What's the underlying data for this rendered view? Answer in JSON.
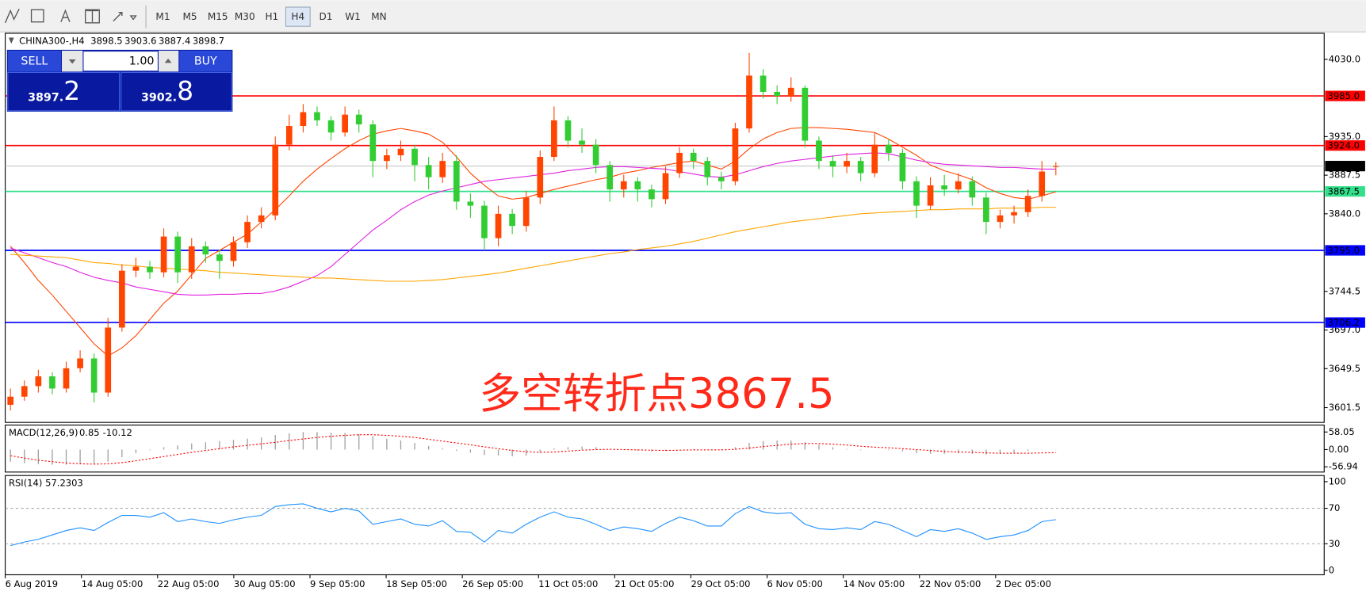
{
  "toolbar": {
    "timeframes": [
      "M1",
      "M5",
      "M15",
      "M30",
      "H1",
      "H4",
      "D1",
      "W1",
      "MN"
    ],
    "active": 5
  },
  "trade_panel": {
    "sell": "SELL",
    "buy": "BUY",
    "lot": "1.00",
    "sell_price_main": "3897.",
    "sell_price_digit": "2",
    "buy_price_main": "3902.",
    "buy_price_digit": "8"
  },
  "time_axis": [
    "6 Aug 2019",
    "14 Aug 05:00",
    "22 Aug 05:00",
    "30 Aug 05:00",
    "9 Sep 05:00",
    "18 Sep 05:00",
    "26 Sep 05:00",
    "11 Oct 05:00",
    "21 Oct 05:00",
    "29 Oct 05:00",
    "6 Nov 05:00",
    "14 Nov 05:00",
    "22 Nov 05:00",
    "2 Dec 05:00"
  ],
  "chart_data": [
    {
      "type": "candlestick",
      "title": "CHINA300-,H4",
      "ohlc_header": [
        3898.5,
        3903.6,
        3887.4,
        3898.7
      ],
      "up_color": "#ff4500",
      "down_color": "#32cd32",
      "ohlc": [
        [
          3605,
          3625,
          3598,
          3615
        ],
        [
          3615,
          3635,
          3610,
          3628
        ],
        [
          3628,
          3648,
          3620,
          3640
        ],
        [
          3640,
          3645,
          3618,
          3625
        ],
        [
          3625,
          3658,
          3620,
          3650
        ],
        [
          3650,
          3672,
          3645,
          3662
        ],
        [
          3662,
          3668,
          3608,
          3620
        ],
        [
          3620,
          3712,
          3615,
          3700
        ],
        [
          3700,
          3778,
          3695,
          3770
        ],
        [
          3770,
          3786,
          3762,
          3775
        ],
        [
          3775,
          3782,
          3760,
          3768
        ],
        [
          3768,
          3822,
          3762,
          3812
        ],
        [
          3812,
          3818,
          3755,
          3768
        ],
        [
          3768,
          3810,
          3760,
          3800
        ],
        [
          3800,
          3806,
          3780,
          3790
        ],
        [
          3790,
          3796,
          3760,
          3782
        ],
        [
          3782,
          3812,
          3775,
          3805
        ],
        [
          3805,
          3838,
          3798,
          3830
        ],
        [
          3830,
          3848,
          3822,
          3838
        ],
        [
          3838,
          3935,
          3832,
          3925
        ],
        [
          3925,
          3962,
          3918,
          3948
        ],
        [
          3948,
          3975,
          3940,
          3965
        ],
        [
          3965,
          3972,
          3948,
          3955
        ],
        [
          3955,
          3960,
          3930,
          3940
        ],
        [
          3940,
          3972,
          3935,
          3962
        ],
        [
          3962,
          3968,
          3940,
          3950
        ],
        [
          3950,
          3955,
          3885,
          3905
        ],
        [
          3905,
          3920,
          3895,
          3912
        ],
        [
          3912,
          3930,
          3905,
          3920
        ],
        [
          3920,
          3925,
          3880,
          3900
        ],
        [
          3900,
          3910,
          3870,
          3885
        ],
        [
          3885,
          3915,
          3878,
          3905
        ],
        [
          3905,
          3912,
          3845,
          3855
        ],
        [
          3855,
          3865,
          3835,
          3850
        ],
        [
          3850,
          3856,
          3795,
          3810
        ],
        [
          3810,
          3850,
          3800,
          3840
        ],
        [
          3840,
          3846,
          3815,
          3825
        ],
        [
          3825,
          3868,
          3818,
          3860
        ],
        [
          3860,
          3918,
          3852,
          3910
        ],
        [
          3910,
          3972,
          3905,
          3955
        ],
        [
          3955,
          3960,
          3922,
          3930
        ],
        [
          3930,
          3945,
          3915,
          3925
        ],
        [
          3925,
          3932,
          3890,
          3900
        ],
        [
          3900,
          3905,
          3855,
          3870
        ],
        [
          3870,
          3888,
          3860,
          3880
        ],
        [
          3880,
          3885,
          3855,
          3870
        ],
        [
          3870,
          3876,
          3848,
          3858
        ],
        [
          3858,
          3898,
          3852,
          3890
        ],
        [
          3890,
          3922,
          3884,
          3915
        ],
        [
          3915,
          3920,
          3895,
          3905
        ],
        [
          3905,
          3910,
          3875,
          3885
        ],
        [
          3885,
          3892,
          3870,
          3880
        ],
        [
          3880,
          3952,
          3875,
          3945
        ],
        [
          3945,
          4038,
          3940,
          4010
        ],
        [
          4010,
          4018,
          3982,
          3990
        ],
        [
          3990,
          3998,
          3975,
          3985
        ],
        [
          3985,
          4008,
          3978,
          3995
        ],
        [
          3995,
          3998,
          3922,
          3930
        ],
        [
          3930,
          3935,
          3895,
          3905
        ],
        [
          3905,
          3912,
          3885,
          3898
        ],
        [
          3898,
          3915,
          3890,
          3905
        ],
        [
          3905,
          3910,
          3880,
          3890
        ],
        [
          3890,
          3940,
          3885,
          3925
        ],
        [
          3925,
          3932,
          3905,
          3915
        ],
        [
          3915,
          3920,
          3870,
          3880
        ],
        [
          3880,
          3886,
          3835,
          3850
        ],
        [
          3850,
          3885,
          3845,
          3875
        ],
        [
          3875,
          3888,
          3862,
          3870
        ],
        [
          3870,
          3890,
          3865,
          3880
        ],
        [
          3880,
          3886,
          3850,
          3860
        ],
        [
          3860,
          3866,
          3815,
          3830
        ],
        [
          3830,
          3845,
          3822,
          3838
        ],
        [
          3838,
          3850,
          3828,
          3842
        ],
        [
          3842,
          3870,
          3836,
          3862
        ],
        [
          3862,
          3905,
          3855,
          3892
        ],
        [
          3898.5,
          3903.6,
          3887.4,
          3898.7
        ]
      ],
      "moving_averages": [
        {
          "color": "#ff4500",
          "values": [
            3800,
            3780,
            3758,
            3740,
            3720,
            3700,
            3680,
            3665,
            3675,
            3690,
            3710,
            3730,
            3745,
            3765,
            3785,
            3795,
            3805,
            3815,
            3830,
            3845,
            3862,
            3880,
            3895,
            3908,
            3920,
            3930,
            3938,
            3942,
            3945,
            3942,
            3938,
            3928,
            3910,
            3890,
            3875,
            3862,
            3858,
            3860,
            3865,
            3870,
            3874,
            3878,
            3882,
            3885,
            3890,
            3893,
            3897,
            3900,
            3903,
            3905,
            3900,
            3895,
            3905,
            3920,
            3932,
            3940,
            3945,
            3946,
            3946,
            3945,
            3944,
            3942,
            3940,
            3932,
            3922,
            3912,
            3900,
            3893,
            3888,
            3882,
            3872,
            3865,
            3860,
            3858,
            3862,
            3867
          ]
        },
        {
          "color": "#e020e0",
          "values": [
            3798,
            3792,
            3786,
            3780,
            3775,
            3768,
            3762,
            3758,
            3755,
            3750,
            3747,
            3744,
            3741,
            3740,
            3740,
            3741,
            3741,
            3742,
            3742,
            3745,
            3750,
            3757,
            3764,
            3775,
            3790,
            3805,
            3820,
            3832,
            3845,
            3855,
            3863,
            3868,
            3872,
            3876,
            3880,
            3882,
            3884,
            3886,
            3888,
            3890,
            3893,
            3895,
            3897,
            3898,
            3898,
            3897,
            3896,
            3895,
            3892,
            3889,
            3886,
            3885,
            3888,
            3893,
            3898,
            3902,
            3905,
            3907,
            3909,
            3911,
            3913,
            3914,
            3915,
            3914,
            3910,
            3906,
            3903,
            3901,
            3900,
            3899,
            3898,
            3897,
            3897,
            3896,
            3895,
            3895
          ]
        },
        {
          "color": "#ffa500",
          "values": [
            3790,
            3789,
            3788,
            3787,
            3786,
            3783,
            3780,
            3779,
            3777,
            3776,
            3774,
            3773,
            3772,
            3771,
            3770,
            3768,
            3767,
            3766,
            3765,
            3764,
            3763,
            3762,
            3761,
            3761,
            3760,
            3759,
            3758,
            3757,
            3757,
            3757,
            3758,
            3759,
            3761,
            3763,
            3765,
            3767,
            3770,
            3773,
            3776,
            3779,
            3782,
            3785,
            3788,
            3791,
            3793,
            3796,
            3798,
            3800,
            3803,
            3806,
            3810,
            3814,
            3818,
            3821,
            3824,
            3827,
            3830,
            3832,
            3834,
            3836,
            3838,
            3840,
            3841,
            3842,
            3843,
            3844,
            3845,
            3845,
            3846,
            3846,
            3846,
            3847,
            3847,
            3847,
            3848,
            3848
          ]
        }
      ],
      "levels": [
        {
          "value": 3985,
          "label": "3985.0",
          "color": "#ff0000"
        },
        {
          "value": 3924,
          "label": "3924.0",
          "color": "#ff0000"
        },
        {
          "value": 3867.5,
          "label": "3867.5",
          "color": "#32e08c"
        },
        {
          "value": 3795,
          "label": "3795.0",
          "color": "#0000ff"
        },
        {
          "value": 3706.2,
          "label": "3706.2",
          "color": "#0000ff"
        }
      ],
      "current_price": 3898.7,
      "annotation": "多空转折点3867.5",
      "ylim": [
        3583.3,
        4062.1
      ],
      "yticks": [
        {
          "value": 4030,
          "label": "4030.0"
        },
        {
          "value": 3935,
          "label": "3935.0"
        },
        3887.5,
        {
          "value": 3840,
          "label": "3840.0"
        },
        3744.5,
        {
          "value": 3697,
          "label": "3697.0"
        },
        3649.5,
        3601.5
      ]
    },
    {
      "type": "macd",
      "title": "MACD(12,26,9)",
      "header_values": [
        0.85,
        -10.12
      ],
      "histogram": [
        -40,
        -45,
        -48,
        -50,
        -50,
        -48,
        -47,
        -40,
        -25,
        -12,
        -2,
        8,
        14,
        20,
        24,
        28,
        32,
        36,
        40,
        48,
        54,
        58,
        58,
        56,
        55,
        52,
        44,
        36,
        30,
        22,
        12,
        4,
        -4,
        -10,
        -18,
        -20,
        -22,
        -20,
        -10,
        4,
        8,
        10,
        8,
        2,
        -2,
        -4,
        -6,
        -4,
        0,
        2,
        0,
        -2,
        8,
        22,
        28,
        30,
        30,
        24,
        16,
        8,
        2,
        -2,
        0,
        -2,
        -6,
        -12,
        -14,
        -14,
        -12,
        -14,
        -16,
        -14,
        -10,
        -5,
        -1,
        0.85
      ],
      "signal": [
        -20,
        -28,
        -35,
        -40,
        -44,
        -47,
        -48,
        -47,
        -43,
        -37,
        -30,
        -23,
        -16,
        -9,
        -3,
        3,
        9,
        14,
        19,
        24,
        30,
        35,
        40,
        44,
        47,
        49,
        49,
        47,
        44,
        40,
        34,
        28,
        22,
        16,
        9,
        3,
        -3,
        -7,
        -9,
        -8,
        -5,
        -2,
        0,
        1,
        0,
        -1,
        -2,
        -3,
        -2,
        -1,
        -1,
        -1,
        1,
        5,
        10,
        14,
        18,
        20,
        20,
        18,
        15,
        11,
        8,
        6,
        3,
        0,
        -3,
        -6,
        -8,
        -9,
        -11,
        -12,
        -12,
        -12,
        -11,
        -10.12
      ],
      "hist_color": "#a0a0a0",
      "signal_color": "#ff0000",
      "ylim": [
        -74.2,
        81.05
      ],
      "yticks": [
        58.05,
        {
          "value": 0,
          "label": "0.00"
        },
        -56.94
      ]
    },
    {
      "type": "line",
      "title": "RSI(14)",
      "header_values": [
        57.2303
      ],
      "color": "#1e90ff",
      "values": [
        28,
        32,
        35,
        40,
        45,
        48,
        45,
        54,
        62,
        62,
        60,
        65,
        55,
        58,
        55,
        53,
        57,
        60,
        62,
        72,
        74,
        75,
        70,
        66,
        70,
        67,
        52,
        55,
        58,
        52,
        50,
        56,
        44,
        43,
        32,
        45,
        42,
        52,
        60,
        66,
        60,
        58,
        52,
        45,
        49,
        47,
        44,
        53,
        60,
        56,
        50,
        50,
        64,
        72,
        66,
        64,
        65,
        52,
        47,
        46,
        48,
        46,
        55,
        52,
        45,
        38,
        46,
        44,
        47,
        42,
        35,
        38,
        40,
        45,
        55,
        57.2303
      ],
      "levels": [
        70,
        30
      ],
      "ylim": [
        -4.9,
        106.9
      ],
      "yticks": [
        100,
        70,
        30,
        0
      ]
    }
  ]
}
